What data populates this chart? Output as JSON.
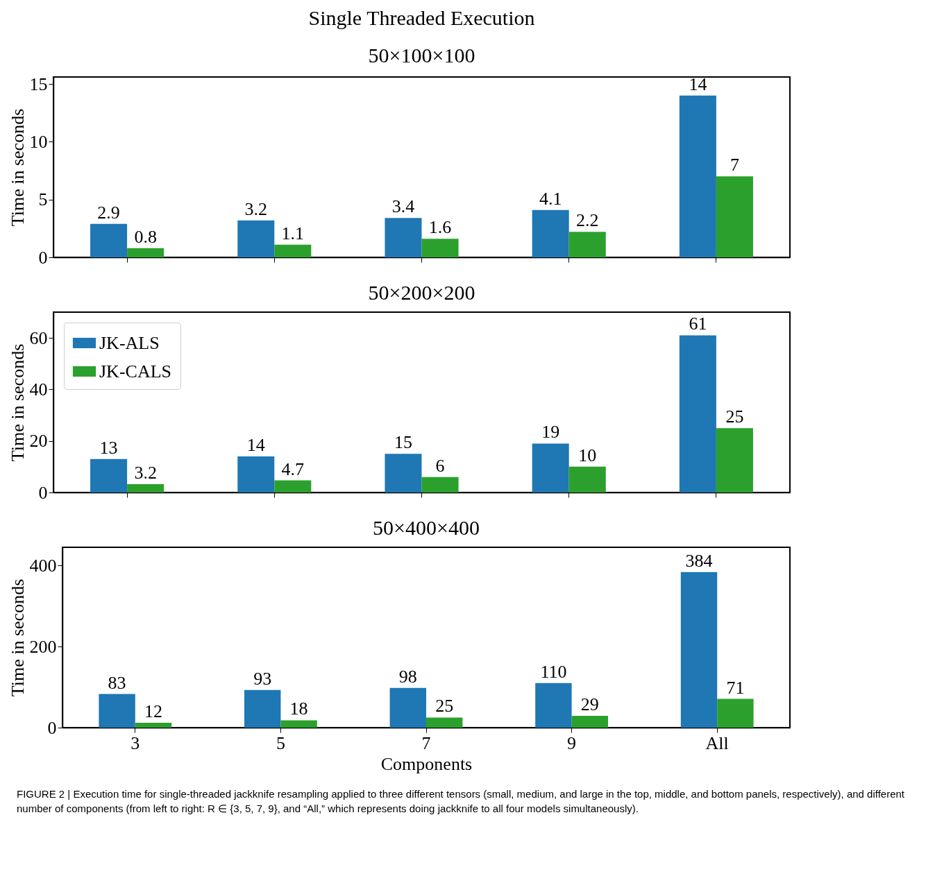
{
  "chart_data": [
    {
      "type": "bar",
      "title": "Single Threaded Execution",
      "subtitle": "50×100×100",
      "ylabel": "Time in seconds",
      "categories": [
        null,
        null,
        null,
        null,
        null
      ],
      "series": [
        {
          "color": "#1f77b4",
          "values": [
            2.9,
            3.2,
            3.4,
            4.1,
            14
          ]
        },
        {
          "color": "#2ca02c",
          "values": [
            0.8,
            1.1,
            1.6,
            2.2,
            7
          ]
        }
      ],
      "ylim": [
        0,
        15.6
      ],
      "yticks": [
        0,
        5,
        10,
        15
      ],
      "data_labels": true,
      "tick_labels": "y"
    },
    {
      "type": "bar",
      "title": "50×200×200",
      "ylabel": "Time in seconds",
      "categories": [
        null,
        null,
        null,
        null,
        null
      ],
      "series": [
        {
          "name": "JK-ALS",
          "color": "#1f77b4",
          "values": [
            13,
            14,
            15,
            19,
            61
          ]
        },
        {
          "name": "JK-CALS",
          "color": "#2ca02c",
          "values": [
            3.2,
            4.7,
            6,
            10,
            25
          ]
        }
      ],
      "ylim": [
        0,
        70
      ],
      "yticks": [
        0,
        20,
        40,
        60
      ],
      "data_labels": true,
      "tick_labels": "y",
      "legend": "top left"
    },
    {
      "type": "bar",
      "title": "50×400×400",
      "xlabel": "Components",
      "ylabel": "Time in seconds",
      "categories": [
        "3",
        "5",
        "7",
        "9",
        "All"
      ],
      "series": [
        {
          "color": "#1f77b4",
          "values": [
            83,
            93,
            98,
            110,
            384
          ]
        },
        {
          "color": "#2ca02c",
          "values": [
            12,
            18,
            25,
            29,
            71
          ]
        }
      ],
      "ylim": [
        0,
        445
      ],
      "yticks": [
        0,
        200,
        400
      ],
      "data_labels": true,
      "annotations": [
        "FIGURE 2 | Execution time for single-threaded jackknife resampling applied to three different tensors (small, medium, and large in the top, middle, and bottom panels, respectively), and different number of components (from left to right: R ∈ {3, 5, 7, 9}, and “All,” which represents doing jackknife to all four models simultaneously)."
      ]
    }
  ]
}
